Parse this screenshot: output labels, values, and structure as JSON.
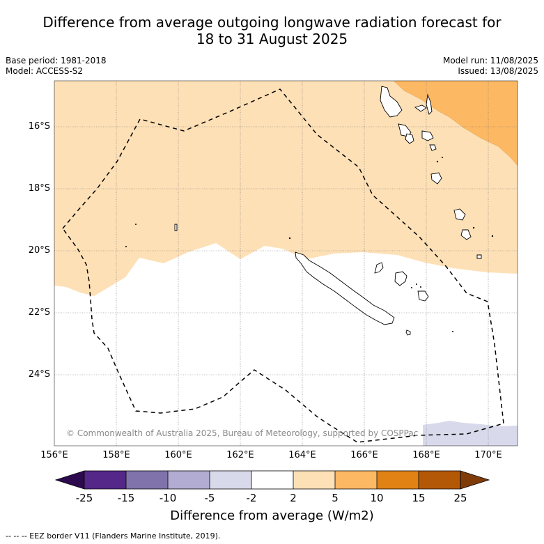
{
  "header": {
    "title_line1": "Difference from average outgoing longwave radiation forecast for",
    "title_line2": "18 to 31 August 2025",
    "base_period": "Base period: 1981-2018",
    "model": "Model: ACCESS-S2",
    "model_run": "Model run: 11/08/2025",
    "issued": "Issued: 13/08/2025"
  },
  "map": {
    "lat_labels": [
      "16°S",
      "18°S",
      "20°S",
      "22°S",
      "24°S"
    ],
    "lon_labels": [
      "156°E",
      "158°E",
      "160°E",
      "162°E",
      "164°E",
      "166°E",
      "168°E",
      "170°E"
    ],
    "copyright": "© Commonwealth of Australia 2025, Bureau of Meteorology, supported by COSPPac"
  },
  "colorbar": {
    "tick_labels": [
      "-25",
      "-15",
      "-10",
      "-5",
      "-2",
      "2",
      "5",
      "10",
      "15",
      "25"
    ],
    "title": "Difference from average (W/m2)",
    "colors": [
      "#2d0a4e",
      "#542788",
      "#8073ac",
      "#b2abd2",
      "#d8daeb",
      "#ffffff",
      "#fee0b6",
      "#fdb863",
      "#e08214",
      "#b35806",
      "#7f3b08"
    ]
  },
  "footnote": "--  --  -- EEZ border V11 (Flanders Marine Institute, 2019)."
}
